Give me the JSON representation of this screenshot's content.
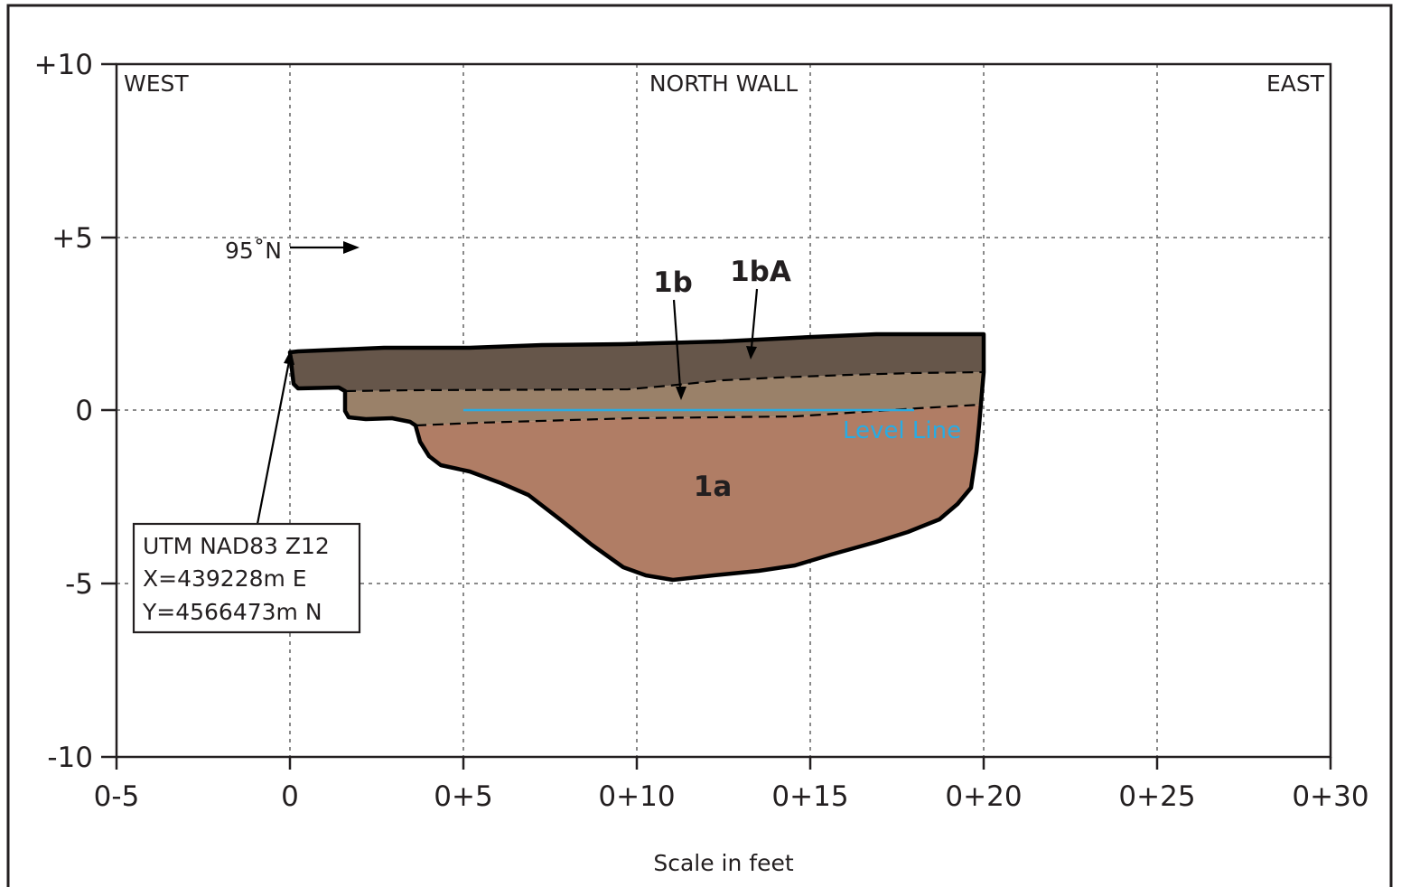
{
  "profile": {
    "x_ticks": [
      "0-5",
      "0",
      "0+5",
      "0+10",
      "0+15",
      "0+20",
      "0+25",
      "0+30"
    ],
    "y_ticks": [
      "+10",
      "+5",
      "0",
      "-5",
      "-10"
    ],
    "x_axis_title": "Scale in feet",
    "wall_title": "NORTH WALL",
    "west_label": "WEST",
    "east_label": "EAST",
    "bearing_label": "95˚N",
    "level_line_label": "Level Line",
    "layers": [
      {
        "label": "1bA",
        "color": "#66564a"
      },
      {
        "label": "1b",
        "color": "#9a8169"
      },
      {
        "label": "1a",
        "color": "#b07d65"
      }
    ],
    "datum_box": {
      "lines": [
        "UTM NAD83 Z12",
        "X=439228m E",
        "Y=4566473m N"
      ]
    },
    "colors": {
      "level_line": "#29abe2",
      "frame": "#231f20",
      "grid": "#8a8a8a"
    }
  }
}
